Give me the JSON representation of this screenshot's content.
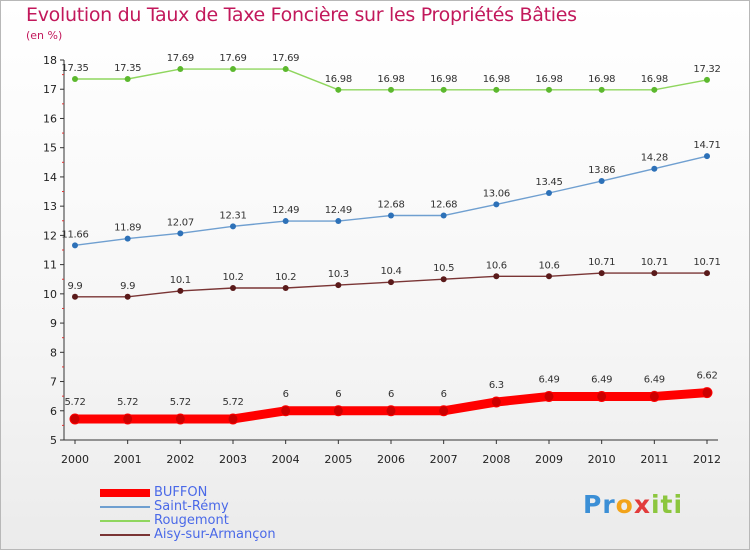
{
  "header": {
    "title": "Evolution du Taux de Taxe Foncière sur les Propriétés Bâties",
    "subtitle": "(en %)"
  },
  "chart_data": {
    "type": "line",
    "title": "Evolution du Taux de Taxe Foncière sur les Propriétés Bâties",
    "ylabel": "(en %)",
    "xlabel": "",
    "ylim": [
      5,
      18
    ],
    "yticks": [
      5,
      6,
      7,
      8,
      9,
      10,
      11,
      12,
      13,
      14,
      15,
      16,
      17,
      18
    ],
    "x": [
      "2000",
      "2001",
      "2002",
      "2003",
      "2004",
      "2005",
      "2006",
      "2007",
      "2008",
      "2009",
      "2010",
      "2011",
      "2012"
    ],
    "grid": false,
    "legend_position": "bottom-left",
    "series": [
      {
        "name": "BUFFON",
        "color": "#ff0000",
        "marker_color": "#cc0000",
        "style": "bold",
        "values": [
          5.72,
          5.72,
          5.72,
          5.72,
          6,
          6,
          6,
          6,
          6.3,
          6.49,
          6.49,
          6.49,
          6.62
        ],
        "labels": [
          "5.72",
          "5.72",
          "5.72",
          "5.72",
          "6",
          "6",
          "6",
          "6",
          "6.3",
          "6.49",
          "6.49",
          "6.49",
          "6.62"
        ]
      },
      {
        "name": "Saint-Rémy",
        "color": "#6f9fd0",
        "marker_color": "#2d71b8",
        "style": "thin",
        "values": [
          11.66,
          11.89,
          12.07,
          12.31,
          12.49,
          12.49,
          12.68,
          12.68,
          13.06,
          13.45,
          13.86,
          14.28,
          14.71
        ],
        "labels": [
          "11.66",
          "11.89",
          "12.07",
          "12.31",
          "12.49",
          "12.49",
          "12.68",
          "12.68",
          "13.06",
          "13.45",
          "13.86",
          "14.28",
          "14.71"
        ]
      },
      {
        "name": "Rougemont",
        "color": "#8fd65e",
        "marker_color": "#5cb82e",
        "style": "thin",
        "values": [
          17.35,
          17.35,
          17.69,
          17.69,
          17.69,
          16.98,
          16.98,
          16.98,
          16.98,
          16.98,
          16.98,
          16.98,
          17.32
        ],
        "labels": [
          "17.35",
          "17.35",
          "17.69",
          "17.69",
          "17.69",
          "16.98",
          "16.98",
          "16.98",
          "16.98",
          "16.98",
          "16.98",
          "16.98",
          "17.32"
        ]
      },
      {
        "name": "Aisy-sur-Armançon",
        "color": "#7a3535",
        "marker_color": "#5a1a1a",
        "style": "thin",
        "values": [
          9.9,
          9.9,
          10.1,
          10.2,
          10.2,
          10.3,
          10.4,
          10.5,
          10.6,
          10.6,
          10.71,
          10.71,
          10.71
        ],
        "labels": [
          "9.9",
          "9.9",
          "10.1",
          "10.2",
          "10.2",
          "10.3",
          "10.4",
          "10.5",
          "10.6",
          "10.6",
          "10.71",
          "10.71",
          "10.71"
        ]
      }
    ]
  },
  "logo": {
    "parts": [
      "Pr",
      "o",
      "x",
      "iti"
    ]
  }
}
